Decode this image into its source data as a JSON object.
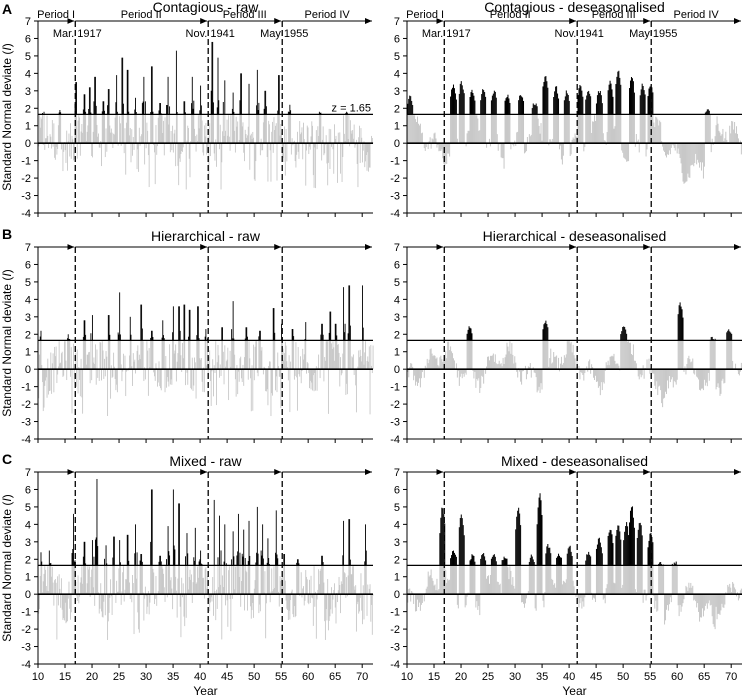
{
  "figure": {
    "xlabel": "Year",
    "ylabel": "Standard Normal deviate (",
    "ylabel_var": "I",
    "ylabel_close": ")",
    "z_label": "z = 1.65",
    "threshold": 1.65,
    "x_ticks": [
      "10",
      "15",
      "20",
      "25",
      "30",
      "35",
      "40",
      "45",
      "50",
      "55",
      "60",
      "65",
      "70"
    ],
    "y_ticks": [
      "7",
      "6",
      "5",
      "4",
      "3",
      "2",
      "1",
      "0",
      "-1",
      "-2",
      "-3",
      "-4"
    ],
    "periods": [
      "Period I",
      "Period II",
      "Period III",
      "Period IV"
    ],
    "boundaries": [
      {
        "label": "Mar. 1917",
        "year": 16.9
      },
      {
        "label": "Nov. 1941",
        "year": 41.5
      },
      {
        "label": "May 1955",
        "year": 55.2
      }
    ],
    "colors": {
      "above": "#000000",
      "below": "#c8c8c8",
      "axis": "#000000"
    }
  },
  "rows": [
    {
      "letter": "A",
      "left_title": "Contagious - raw",
      "right_title": "Contagious - deseasonalised"
    },
    {
      "letter": "B",
      "left_title": "Hierarchical - raw",
      "right_title": "Hierarchical - deseasonalised"
    },
    {
      "letter": "C",
      "left_title": "Mixed - raw",
      "right_title": "Mixed - deseasonalised"
    }
  ],
  "chart_data": [
    {
      "type": "bar",
      "panel": "A-left",
      "title": "Contagious - raw",
      "xlim": [
        10,
        72
      ],
      "ylim": [
        -4,
        7
      ],
      "series_kind": "raw",
      "peaks": [
        [
          11,
          1.8
        ],
        [
          14,
          1.9
        ],
        [
          17,
          3.5
        ],
        [
          18.5,
          2.8
        ],
        [
          19.5,
          3.2
        ],
        [
          20.5,
          3.8
        ],
        [
          22,
          2.4
        ],
        [
          23,
          3.1
        ],
        [
          24.5,
          3.9
        ],
        [
          25.5,
          4.9
        ],
        [
          26.5,
          4.2
        ],
        [
          28,
          2.6
        ],
        [
          29.5,
          3.8
        ],
        [
          31,
          4.4
        ],
        [
          32.5,
          2.3
        ],
        [
          34,
          3.8
        ],
        [
          35.5,
          5.3
        ],
        [
          37,
          2.4
        ],
        [
          38.5,
          3.8
        ],
        [
          40,
          3.3
        ],
        [
          42.2,
          5.8
        ],
        [
          43.2,
          4.9
        ],
        [
          44.5,
          3.6
        ],
        [
          46,
          2.9
        ],
        [
          47.5,
          4.0
        ],
        [
          49,
          3.4
        ],
        [
          50.5,
          4.2
        ],
        [
          52,
          3.0
        ],
        [
          54.5,
          3.9
        ],
        [
          56.5,
          2.2
        ],
        [
          62,
          1.8
        ],
        [
          67,
          1.8
        ]
      ]
    },
    {
      "type": "area",
      "panel": "A-right",
      "title": "Contagious - deseasonalised",
      "xlim": [
        10,
        72
      ],
      "ylim": [
        -4,
        7
      ],
      "series_kind": "smooth",
      "peaks": [
        [
          10.5,
          2.8
        ],
        [
          18.5,
          3.5
        ],
        [
          20,
          3.6
        ],
        [
          22,
          3.1
        ],
        [
          24,
          3.2
        ],
        [
          26,
          3.1
        ],
        [
          28.5,
          2.9
        ],
        [
          31,
          2.9
        ],
        [
          33.5,
          2.4
        ],
        [
          35.5,
          4.0
        ],
        [
          37.5,
          3.3
        ],
        [
          39.5,
          3.1
        ],
        [
          42,
          3.4
        ],
        [
          43.5,
          3.1
        ],
        [
          45.5,
          3.1
        ],
        [
          47.5,
          3.7
        ],
        [
          49,
          4.3
        ],
        [
          51.5,
          4.0
        ],
        [
          53.5,
          3.5
        ],
        [
          55,
          3.5
        ],
        [
          65.5,
          2.0
        ]
      ]
    },
    {
      "type": "bar",
      "panel": "B-left",
      "title": "Hierarchical - raw",
      "xlim": [
        10,
        72
      ],
      "ylim": [
        -4,
        7
      ],
      "series_kind": "raw",
      "peaks": [
        [
          10.5,
          2.2
        ],
        [
          15.5,
          2.0
        ],
        [
          18.5,
          2.8
        ],
        [
          20,
          3.1
        ],
        [
          23,
          3.1
        ],
        [
          25,
          4.4
        ],
        [
          27,
          3.0
        ],
        [
          29,
          3.7
        ],
        [
          31,
          2.2
        ],
        [
          33,
          2.8
        ],
        [
          35,
          3.6
        ],
        [
          36,
          3.6
        ],
        [
          37,
          3.7
        ],
        [
          38,
          3.4
        ],
        [
          39.5,
          3.6
        ],
        [
          41,
          2.3
        ],
        [
          44,
          2.4
        ],
        [
          46,
          3.9
        ],
        [
          48.5,
          2.4
        ],
        [
          51,
          2.2
        ],
        [
          53.5,
          3.5
        ],
        [
          55,
          2.6
        ],
        [
          57,
          2.3
        ],
        [
          59.5,
          2.7
        ],
        [
          62.5,
          2.6
        ],
        [
          64,
          3.3
        ],
        [
          65,
          2.6
        ],
        [
          66.5,
          4.7
        ],
        [
          67.5,
          4.8
        ],
        [
          70,
          4.8
        ]
      ]
    },
    {
      "type": "area",
      "panel": "B-right",
      "title": "Hierarchical - deseasonalised",
      "xlim": [
        10,
        72
      ],
      "ylim": [
        -4,
        7
      ],
      "series_kind": "smooth",
      "peaks": [
        [
          21.5,
          2.5
        ],
        [
          35.5,
          2.9
        ],
        [
          50,
          2.6
        ],
        [
          60.5,
          3.9
        ],
        [
          66.5,
          1.9
        ],
        [
          69.5,
          2.3
        ]
      ]
    },
    {
      "type": "bar",
      "panel": "C-left",
      "title": "Mixed - raw",
      "xlim": [
        10,
        72
      ],
      "ylim": [
        -4,
        7
      ],
      "series_kind": "raw",
      "peaks": [
        [
          10.5,
          2.4
        ],
        [
          12,
          2.5
        ],
        [
          16.5,
          4.6
        ],
        [
          18.5,
          3.0
        ],
        [
          20,
          3.1
        ],
        [
          20.8,
          6.6
        ],
        [
          22.5,
          2.8
        ],
        [
          24,
          3.3
        ],
        [
          25,
          3.1
        ],
        [
          26.5,
          3.4
        ],
        [
          28,
          4.0
        ],
        [
          29,
          2.3
        ],
        [
          31,
          6.0
        ],
        [
          32.5,
          2.2
        ],
        [
          34,
          3.9
        ],
        [
          35,
          6.0
        ],
        [
          36,
          5.2
        ],
        [
          37.5,
          3.5
        ],
        [
          39,
          3.8
        ],
        [
          40,
          2.5
        ],
        [
          42.5,
          5.4
        ],
        [
          43.5,
          4.5
        ],
        [
          44.5,
          4.0
        ],
        [
          46,
          3.6
        ],
        [
          47,
          4.6
        ],
        [
          48,
          3.7
        ],
        [
          49,
          4.2
        ],
        [
          50.5,
          5.0
        ],
        [
          51.5,
          4.0
        ],
        [
          52.5,
          3.2
        ],
        [
          54,
          4.8
        ],
        [
          55.5,
          2.3
        ],
        [
          58,
          2.0
        ],
        [
          62.5,
          2.2
        ],
        [
          66.5,
          4.2
        ],
        [
          67.5,
          4.3
        ],
        [
          70.5,
          4.0
        ]
      ]
    },
    {
      "type": "area",
      "panel": "C-right",
      "title": "Mixed - deseasonalised",
      "xlim": [
        10,
        72
      ],
      "ylim": [
        -4,
        7
      ],
      "series_kind": "smooth",
      "peaks": [
        [
          16.5,
          5.1
        ],
        [
          18.5,
          2.6
        ],
        [
          20,
          4.7
        ],
        [
          22,
          2.3
        ],
        [
          24,
          2.4
        ],
        [
          26,
          2.3
        ],
        [
          28,
          2.2
        ],
        [
          30.5,
          5.0
        ],
        [
          33,
          2.3
        ],
        [
          34.5,
          5.8
        ],
        [
          36,
          2.9
        ],
        [
          38,
          2.4
        ],
        [
          40,
          2.8
        ],
        [
          43.5,
          2.5
        ],
        [
          45.5,
          3.3
        ],
        [
          47.5,
          3.9
        ],
        [
          49,
          4.1
        ],
        [
          50.5,
          4.2
        ],
        [
          51.5,
          5.2
        ],
        [
          53,
          4.3
        ],
        [
          55,
          3.6
        ],
        [
          57,
          1.9
        ],
        [
          59.5,
          1.9
        ]
      ]
    }
  ]
}
